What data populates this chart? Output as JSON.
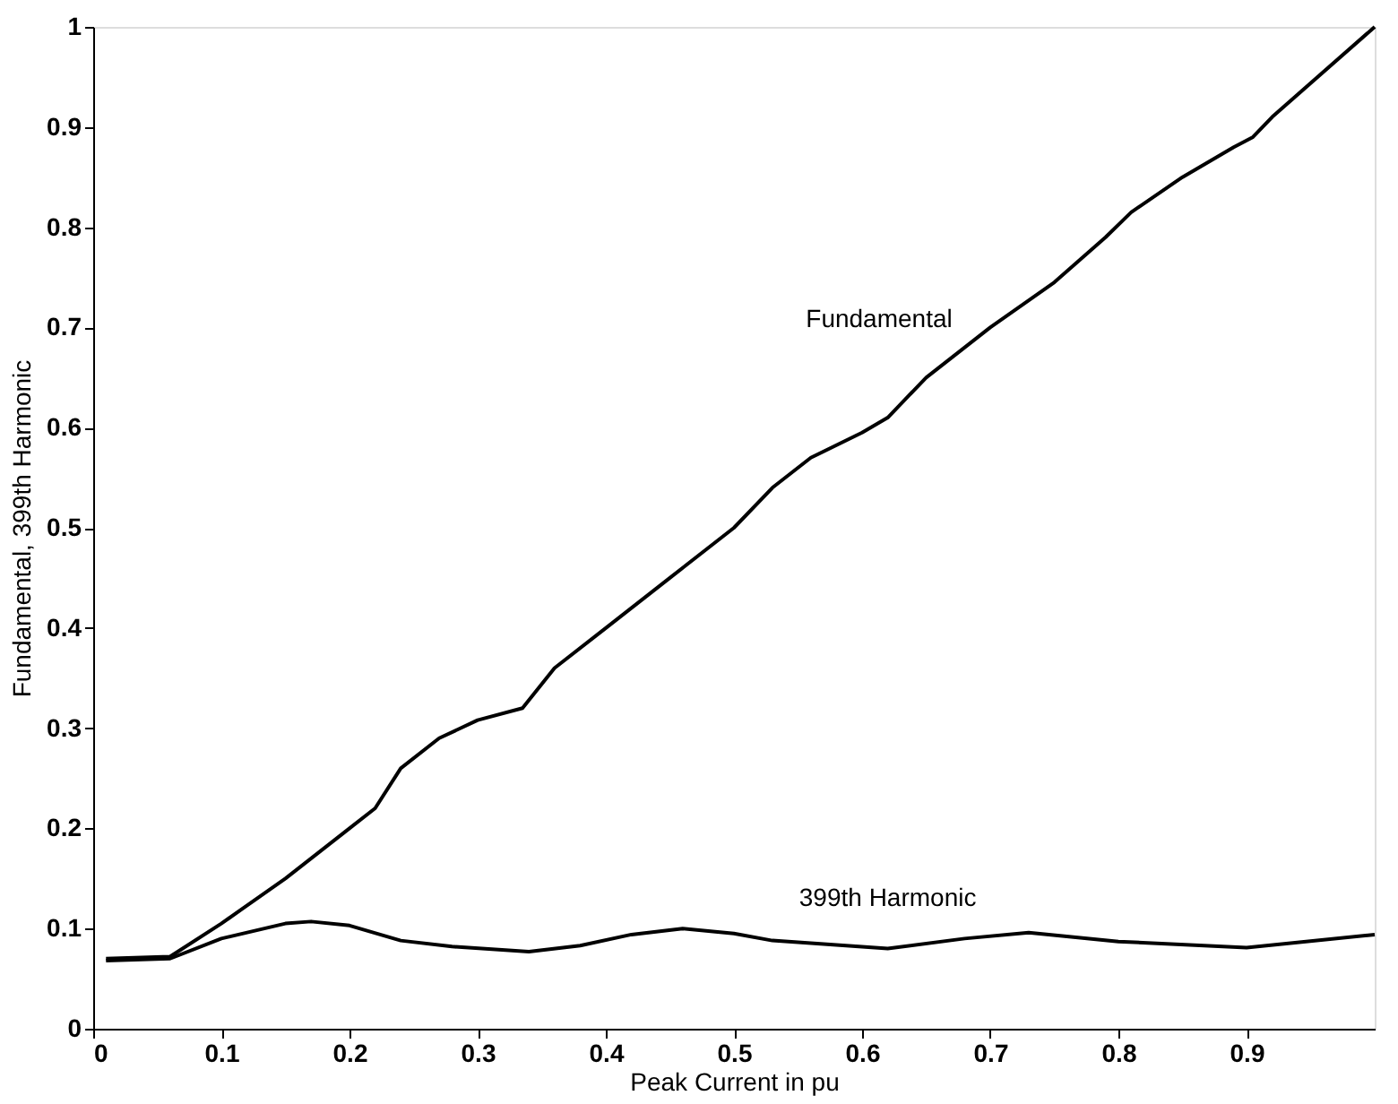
{
  "chart_data": {
    "type": "line",
    "xlabel": "Peak Current in pu",
    "ylabel": "Fundamental, 399th Harmonic",
    "series": [
      {
        "name": "Fundamental",
        "color": "#000000",
        "x": [
          0.01,
          0.06,
          0.1,
          0.15,
          0.2,
          0.22,
          0.24,
          0.27,
          0.3,
          0.335,
          0.36,
          0.4,
          0.45,
          0.5,
          0.53,
          0.56,
          0.6,
          0.62,
          0.65,
          0.7,
          0.75,
          0.79,
          0.81,
          0.85,
          0.89,
          0.905,
          0.92,
          1.0
        ],
        "values": [
          0.07,
          0.072,
          0.105,
          0.15,
          0.2,
          0.22,
          0.26,
          0.29,
          0.308,
          0.32,
          0.36,
          0.4,
          0.45,
          0.5,
          0.54,
          0.57,
          0.595,
          0.61,
          0.65,
          0.7,
          0.745,
          0.79,
          0.815,
          0.85,
          0.88,
          0.89,
          0.91,
          1.0
        ]
      },
      {
        "name": "399th Harmonic",
        "color": "#000000",
        "x": [
          0.01,
          0.06,
          0.1,
          0.15,
          0.17,
          0.2,
          0.24,
          0.28,
          0.34,
          0.38,
          0.42,
          0.46,
          0.5,
          0.53,
          0.62,
          0.68,
          0.73,
          0.8,
          0.9,
          1.0
        ],
        "values": [
          0.068,
          0.07,
          0.09,
          0.105,
          0.107,
          0.103,
          0.088,
          0.082,
          0.077,
          0.083,
          0.094,
          0.1,
          0.095,
          0.088,
          0.08,
          0.09,
          0.096,
          0.087,
          0.081,
          0.094
        ]
      }
    ],
    "xlim": [
      0,
      1
    ],
    "xticks": [
      0,
      0.1,
      0.2,
      0.3,
      0.4,
      0.5,
      0.6,
      0.7,
      0.8,
      0.9
    ],
    "ylim": [
      0,
      1
    ],
    "yticks": [
      0,
      0.1,
      0.2,
      0.3,
      0.4,
      0.5,
      0.6,
      0.7,
      0.8,
      0.9,
      1
    ],
    "grid": false,
    "legend": false,
    "marker": "none",
    "line_style": "solid"
  }
}
